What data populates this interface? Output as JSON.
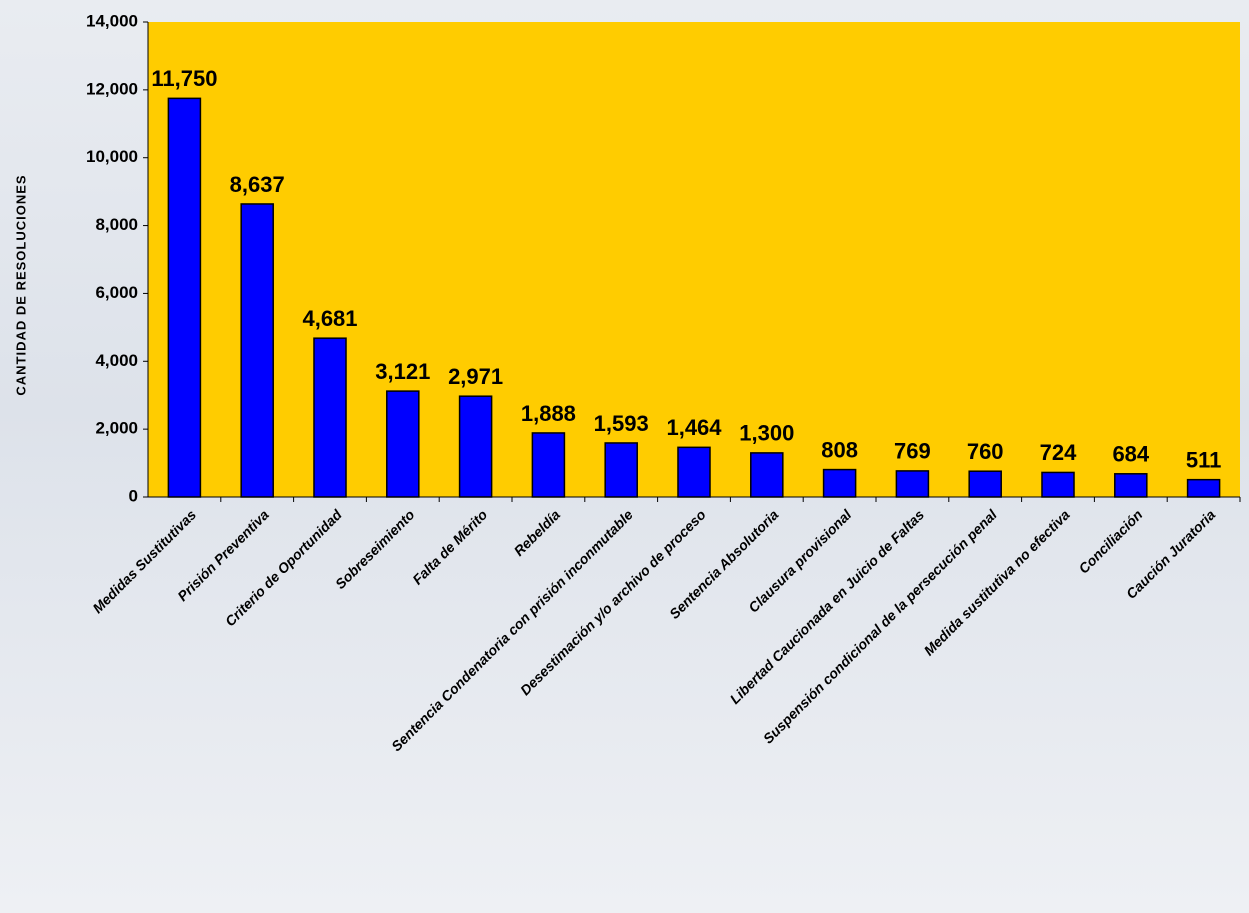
{
  "chart_data": {
    "type": "bar",
    "y_label": "CANTIDAD DE RESOLUCIONES",
    "categories": [
      "Medidas Sustitutivas",
      "Prisión Preventiva",
      "Criterio de Oportunidad",
      "Sobreseimiento",
      "Falta de Mérito",
      "Rebeldía",
      "Sentencia Condenatoria con prisión inconmutable",
      "Desestimación y/o archivo de proceso",
      "Sentencia Absolutoria",
      "Clausura provisional",
      "Libertad Caucionada en Juicio de Faltas",
      "Suspensión condicional de la persecución penal",
      "Medida sustitutiva no efectiva",
      "Conciliación",
      "Caución Juratoria"
    ],
    "values": [
      11750,
      8637,
      4681,
      3121,
      2971,
      1888,
      1593,
      1464,
      1300,
      808,
      769,
      760,
      724,
      684,
      511
    ],
    "value_labels": [
      "11,750",
      "8,637",
      "4,681",
      "3,121",
      "2,971",
      "1,888",
      "1,593",
      "1,464",
      "1,300",
      "808",
      "769",
      "760",
      "724",
      "684",
      "511"
    ],
    "color": "#0000ff",
    "plot_background": "#ffcc00",
    "ylim": [
      0,
      14000
    ],
    "yticks": [
      0,
      {
        "value": 2000,
        "label": "2,000"
      },
      {
        "value": 4000,
        "label": "4,000"
      },
      {
        "value": 6000,
        "label": "6,000"
      },
      {
        "value": 8000,
        "label": "8,000"
      },
      {
        "value": 10000,
        "label": "10,000"
      },
      {
        "value": 12000,
        "label": "12,000"
      },
      {
        "value": 14000,
        "label": "14,000"
      }
    ],
    "grid": false
  }
}
